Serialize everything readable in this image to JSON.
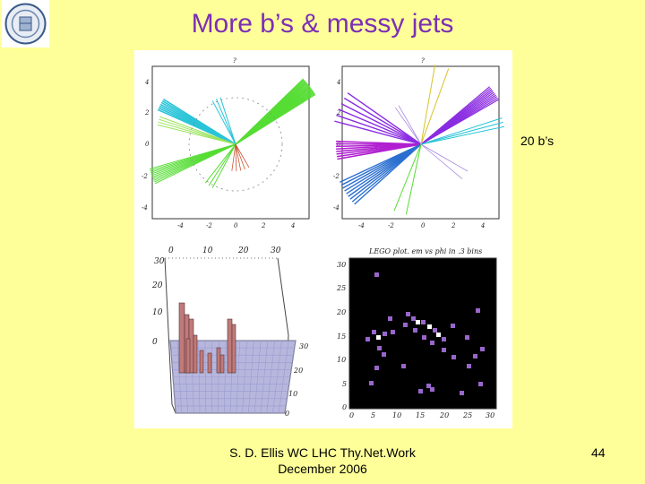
{
  "slide": {
    "title": "More b’s & messy jets",
    "side_label": "20 b’s",
    "footer_line1": "S. D. Ellis   WC LHC Thy.Net.Work",
    "footer_line2": "December 2006",
    "page_number": "44"
  },
  "figure": {
    "panel_top_left": {
      "x_ticks": [
        "-4",
        "-2",
        "0",
        "2",
        "4"
      ],
      "y_ticks": [
        "4",
        "2",
        "0",
        "-2",
        "-4"
      ],
      "top_label": "?"
    },
    "panel_top_right": {
      "x_ticks": [
        "-4",
        "-2",
        "0",
        "2",
        "4"
      ],
      "y_ticks": [
        "4",
        "2",
        "0",
        "-2",
        "-4"
      ],
      "top_label": "?"
    },
    "panel_bottom_left": {
      "top_ticks": [
        "0",
        "10",
        "20",
        "30"
      ],
      "left_ticks": [
        "30",
        "20",
        "10",
        "0"
      ],
      "right_ticks": [
        "30",
        "20",
        "10",
        "0"
      ]
    },
    "panel_bottom_right": {
      "title": "LEGO plot. em vs phi in .3 bins",
      "x_ticks": [
        "0",
        "5",
        "10",
        "15",
        "20",
        "25",
        "30"
      ],
      "y_ticks": [
        "30",
        "25",
        "20",
        "15",
        "10",
        "5",
        "0"
      ]
    },
    "colors": {
      "cyan": "#29c4d8",
      "green": "#55dd33",
      "purple": "#8a2be2",
      "blue": "#2a6fd0",
      "lego_bar": "#c07a7a",
      "lego_grid": "#9a9ad0",
      "heat_low": "#9966cc",
      "heat_high": "#ffffff"
    }
  }
}
